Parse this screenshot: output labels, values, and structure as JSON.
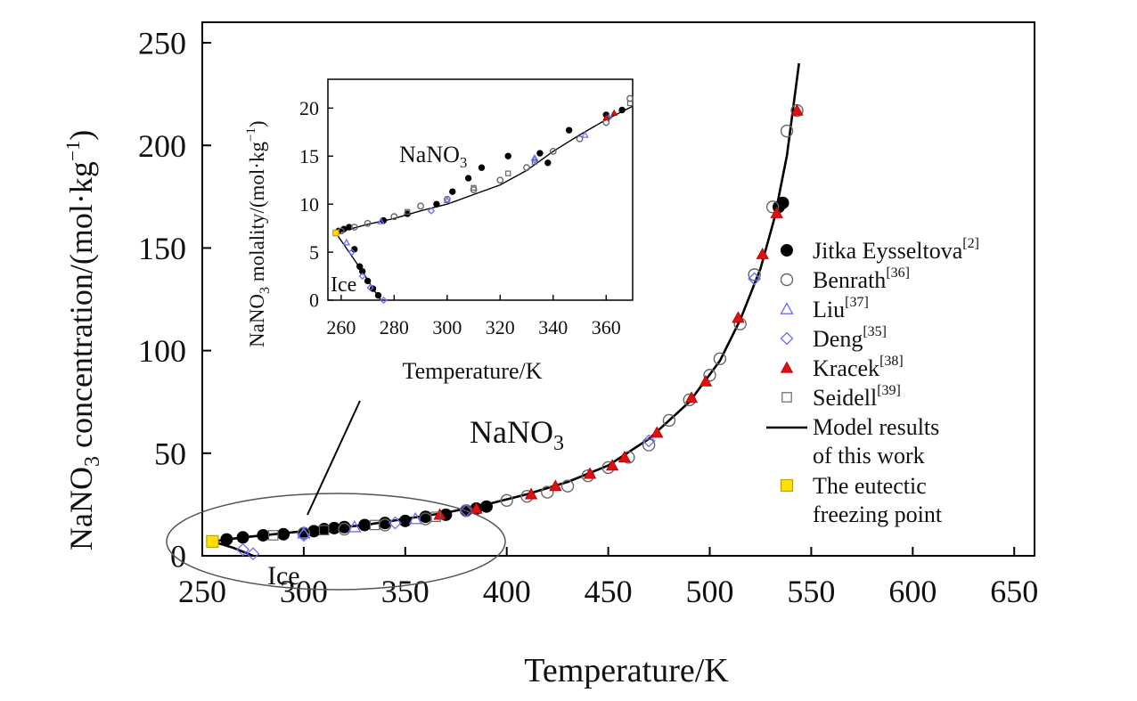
{
  "chart_data": [
    {
      "type": "scatter",
      "role": "main",
      "xlabel": "Temperature/K",
      "ylabel_parts": [
        "NaNO",
        "3",
        " concentration/(mol·kg",
        "−1",
        ")"
      ],
      "xlim": [
        250,
        660
      ],
      "ylim": [
        0,
        260
      ],
      "xticks": [
        250,
        300,
        350,
        400,
        450,
        500,
        550,
        600,
        650
      ],
      "yticks": [
        0,
        50,
        100,
        150,
        200,
        250
      ],
      "annotations": {
        "nano3_parts": [
          "NaNO",
          "3"
        ],
        "ice": "Ice"
      },
      "model_curve": {
        "name": "Model results of this work",
        "branch_nano3": [
          [
            255,
            7
          ],
          [
            270,
            9
          ],
          [
            290,
            11
          ],
          [
            310,
            13
          ],
          [
            330,
            15
          ],
          [
            350,
            18
          ],
          [
            370,
            21
          ],
          [
            390,
            25
          ],
          [
            410,
            30
          ],
          [
            430,
            36
          ],
          [
            450,
            44
          ],
          [
            470,
            57
          ],
          [
            490,
            75
          ],
          [
            505,
            95
          ],
          [
            515,
            115
          ],
          [
            525,
            140
          ],
          [
            532,
            165
          ],
          [
            538,
            195
          ],
          [
            542,
            225
          ],
          [
            544,
            240
          ]
        ],
        "branch_ice": [
          [
            255,
            7
          ],
          [
            265,
            4
          ],
          [
            275,
            0
          ]
        ]
      },
      "series": [
        {
          "name": "Jitka Eysseltova",
          "ref": "[2]",
          "marker": "filled-circle",
          "color": "#000000",
          "points": [
            [
              255,
              7
            ],
            [
              262,
              8
            ],
            [
              270,
              9
            ],
            [
              280,
              10
            ],
            [
              290,
              10.5
            ],
            [
              300,
              11
            ],
            [
              305,
              12
            ],
            [
              310,
              13
            ],
            [
              315,
              13.5
            ],
            [
              320,
              14
            ],
            [
              330,
              15
            ],
            [
              340,
              16
            ],
            [
              350,
              17
            ],
            [
              360,
              19
            ],
            [
              370,
              20
            ],
            [
              380,
              22
            ],
            [
              385,
              23
            ],
            [
              390,
              24
            ],
            [
              534,
              170
            ],
            [
              536,
              172
            ]
          ]
        },
        {
          "name": "Benrath",
          "ref": "[36]",
          "marker": "open-circle",
          "color": "#555555",
          "points": [
            [
              300,
              11
            ],
            [
              320,
              13
            ],
            [
              340,
              15
            ],
            [
              360,
              18
            ],
            [
              380,
              22
            ],
            [
              400,
              27
            ],
            [
              410,
              29
            ],
            [
              420,
              31
            ],
            [
              430,
              34
            ],
            [
              440,
              39
            ],
            [
              450,
              43
            ],
            [
              460,
              48
            ],
            [
              470,
              54
            ],
            [
              480,
              66
            ],
            [
              490,
              76
            ],
            [
              500,
              88
            ],
            [
              505,
              96
            ],
            [
              515,
              113
            ],
            [
              522,
              137
            ],
            [
              531,
              170
            ],
            [
              538,
              207
            ],
            [
              543,
              217
            ]
          ]
        },
        {
          "name": "Liu",
          "ref": "[37]",
          "marker": "open-triangle",
          "color": "#6b6bff",
          "points": [
            [
              300,
              11
            ],
            [
              325,
              14
            ],
            [
              355,
              18
            ]
          ]
        },
        {
          "name": "Deng",
          "ref": "[35]",
          "marker": "open-diamond",
          "color": "#6b6bff",
          "points": [
            [
              270,
              3
            ],
            [
              275,
              1
            ],
            [
              300,
              10
            ],
            [
              345,
              16
            ],
            [
              380,
              22
            ],
            [
              470,
              56
            ],
            [
              522,
              135
            ]
          ]
        },
        {
          "name": "Kracek",
          "ref": "[38]",
          "marker": "filled-triangle",
          "color": "#e01010",
          "points": [
            [
              367,
              20
            ],
            [
              385,
              23
            ],
            [
              412,
              30
            ],
            [
              424,
              34
            ],
            [
              441,
              40
            ],
            [
              452,
              44
            ],
            [
              458,
              48
            ],
            [
              474,
              60
            ],
            [
              491,
              77
            ],
            [
              498,
              85
            ],
            [
              514,
              116
            ],
            [
              526,
              147
            ],
            [
              533,
              167
            ],
            [
              543,
              217
            ]
          ]
        },
        {
          "name": "Seidell",
          "ref": "[39]",
          "marker": "open-square",
          "color": "#555555",
          "points": [
            [
              285,
              10
            ],
            [
              310,
              12.5
            ],
            [
              335,
              15
            ],
            [
              365,
              19
            ]
          ]
        },
        {
          "name": "The eutectic freezing point",
          "ref": "",
          "marker": "yellow-square",
          "color": "#ffe000",
          "points": [
            [
              255,
              7
            ]
          ]
        }
      ],
      "legend": {
        "placement": "right",
        "entries": [
          {
            "label": "Jitka Eysseltova",
            "sup": "[2]",
            "marker": "filled-circle"
          },
          {
            "label": "Benrath",
            "sup": "[36]",
            "marker": "open-circle"
          },
          {
            "label": "Liu",
            "sup": "[37]",
            "marker": "open-triangle"
          },
          {
            "label": "Deng",
            "sup": "[35]",
            "marker": "open-diamond"
          },
          {
            "label": "Kracek",
            "sup": "[38]",
            "marker": "filled-triangle"
          },
          {
            "label": "Seidell",
            "sup": "[39]",
            "marker": "open-square"
          },
          {
            "label": "Model results",
            "label2": "of this work",
            "sup": "",
            "marker": "line"
          },
          {
            "label": "The eutectic",
            "label2": "freezing point",
            "sup": "",
            "marker": "yellow-square"
          }
        ]
      }
    },
    {
      "type": "scatter",
      "role": "inset",
      "xlabel": "Temperature/K",
      "ylabel_parts": [
        "NaNO",
        "3",
        " molality/(mol·kg",
        "−1",
        ")"
      ],
      "xlim": [
        255,
        370
      ],
      "ylim": [
        0,
        23
      ],
      "xticks": [
        260,
        280,
        300,
        320,
        340,
        360
      ],
      "yticks": [
        0,
        5,
        10,
        15,
        20
      ],
      "annotations": {
        "nano3_parts": [
          "NaNO",
          "3"
        ],
        "ice": "Ice"
      },
      "model_curve": {
        "branch_nano3": [
          [
            258,
            7
          ],
          [
            270,
            7.9
          ],
          [
            280,
            8.5
          ],
          [
            290,
            9.3
          ],
          [
            300,
            10
          ],
          [
            310,
            11
          ],
          [
            320,
            12
          ],
          [
            330,
            13.5
          ],
          [
            340,
            15.5
          ],
          [
            350,
            17.2
          ],
          [
            360,
            18.8
          ],
          [
            370,
            20.2
          ]
        ],
        "branch_ice": [
          [
            258,
            7
          ],
          [
            263,
            5
          ],
          [
            268,
            3
          ],
          [
            272,
            1.2
          ],
          [
            275,
            0
          ]
        ]
      },
      "series": [
        {
          "name": "Jitka Eysseltova",
          "marker": "filled-circle",
          "points": [
            [
              259,
              7.2
            ],
            [
              261,
              7.4
            ],
            [
              263,
              7.6
            ],
            [
              265,
              5.3
            ],
            [
              267,
              3.5
            ],
            [
              268,
              3
            ],
            [
              270,
              2
            ],
            [
              272,
              1.2
            ],
            [
              274,
              0.5
            ],
            [
              276,
              8.3
            ],
            [
              285,
              9
            ],
            [
              296,
              10
            ],
            [
              302,
              11.3
            ],
            [
              308,
              12.7
            ],
            [
              313,
              13.8
            ],
            [
              323,
              15
            ],
            [
              335,
              15.3
            ],
            [
              338,
              14.3
            ],
            [
              346,
              17.7
            ],
            [
              360,
              19.3
            ],
            [
              366,
              19.8
            ]
          ]
        },
        {
          "name": "Benrath",
          "marker": "open-circle",
          "points": [
            [
              260,
              7.2
            ],
            [
              265,
              7.6
            ],
            [
              270,
              8
            ],
            [
              280,
              8.7
            ],
            [
              290,
              9.8
            ],
            [
              300,
              10.5
            ],
            [
              310,
              11.5
            ],
            [
              320,
              12.5
            ],
            [
              330,
              13.8
            ],
            [
              340,
              15.5
            ],
            [
              350,
              16.8
            ],
            [
              360,
              18.5
            ],
            [
              369,
              21
            ]
          ]
        },
        {
          "name": "Liu",
          "marker": "open-triangle",
          "points": [
            [
              262,
              6
            ],
            [
              275,
              8.2
            ],
            [
              300,
              10.4
            ],
            [
              333,
              14.8
            ],
            [
              352,
              17.2
            ]
          ]
        },
        {
          "name": "Deng",
          "marker": "open-diamond",
          "points": [
            [
              264,
              5
            ],
            [
              268,
              2.5
            ],
            [
              271,
              1.3
            ],
            [
              276,
              0
            ],
            [
              294,
              9.3
            ],
            [
              333,
              14.6
            ],
            [
              361,
              19
            ]
          ]
        },
        {
          "name": "Kracek",
          "marker": "filled-triangle",
          "points": [
            [
              360,
              19
            ],
            [
              363,
              19.5
            ]
          ]
        },
        {
          "name": "Seidell",
          "marker": "open-square",
          "points": [
            [
              285,
              9.2
            ],
            [
              310,
              11.7
            ],
            [
              323,
              13.2
            ],
            [
              333,
              14.4
            ],
            [
              369,
              20.5
            ]
          ]
        },
        {
          "name": "The eutectic freezing point",
          "marker": "yellow-square",
          "points": [
            [
              258,
              7
            ]
          ]
        }
      ]
    }
  ]
}
